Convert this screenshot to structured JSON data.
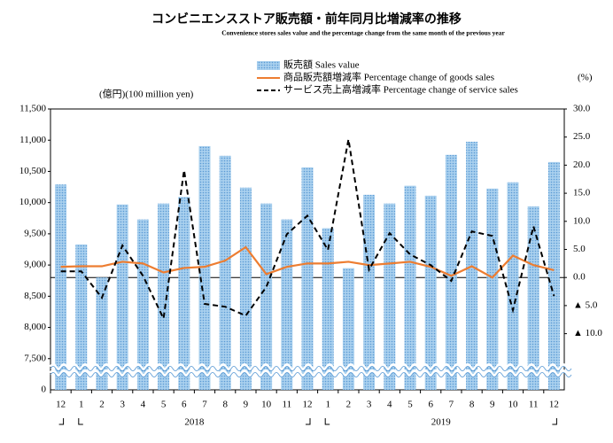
{
  "chart_data": {
    "type": "bar_line",
    "title": "コンビニエンスストア販売額・前年同月比増減率の推移",
    "subtitle": "Convenience stores sales value and the percentage change from the same month of the previous year",
    "y_label": "(億円)(100 million yen)",
    "y2_label": "(%)",
    "categories": [
      "12",
      "1",
      "2",
      "3",
      "4",
      "5",
      "6",
      "7",
      "8",
      "9",
      "10",
      "11",
      "12",
      "1",
      "2",
      "3",
      "4",
      "5",
      "6",
      "7",
      "8",
      "9",
      "10",
      "11",
      "12"
    ],
    "year_labels": [
      "2018",
      "2019"
    ],
    "ylim": [
      7000,
      11500
    ],
    "yticks": [
      {
        "value": 7500,
        "label": "7,500"
      },
      {
        "value": 8000,
        "label": "8,000"
      },
      {
        "value": 8500,
        "label": "8,500"
      },
      {
        "value": 9000,
        "label": "9,000"
      },
      {
        "value": 9500,
        "label": "9,500"
      },
      {
        "value": 10000,
        "label": "10,000"
      },
      {
        "value": 10500,
        "label": "10,500"
      },
      {
        "value": 11000,
        "label": "11,000"
      },
      {
        "value": 11500,
        "label": "11,500"
      }
    ],
    "y_break_label": "0",
    "y2lim": [
      -20,
      30
    ],
    "y2ticks": [
      {
        "value": -10,
        "label": "▲ 10.0"
      },
      {
        "value": -5,
        "label": "▲ 5.0"
      },
      {
        "value": 0,
        "label": "0.0"
      },
      {
        "value": 5,
        "label": "5.0"
      },
      {
        "value": 10,
        "label": "10.0"
      },
      {
        "value": 15,
        "label": "15.0"
      },
      {
        "value": 20,
        "label": "20.0"
      },
      {
        "value": 25,
        "label": "25.0"
      },
      {
        "value": 30,
        "label": "30.0"
      }
    ],
    "series": [
      {
        "name": "販売額 Sales value",
        "kind": "bar",
        "color": "#9cc8ea",
        "values": [
          10290,
          9330,
          8800,
          9970,
          9730,
          9985,
          10090,
          10905,
          10750,
          10240,
          9985,
          9730,
          10565,
          9590,
          8950,
          10125,
          9985,
          10270,
          10110,
          10765,
          10975,
          10225,
          10325,
          9940,
          10650
        ]
      },
      {
        "name": "商品販売額増減率 Percentage change of goods sales",
        "kind": "line",
        "axis": "y2",
        "color": "#ed7d31",
        "values": [
          1.9,
          2.0,
          2.0,
          2.8,
          2.5,
          0.9,
          1.7,
          1.9,
          3.0,
          5.4,
          0.6,
          1.9,
          2.5,
          2.5,
          2.8,
          2.2,
          2.5,
          2.8,
          1.9,
          0.3,
          2.0,
          0.0,
          3.9,
          2.2,
          1.3
        ]
      },
      {
        "name": "サービス売上高増減率 Percentage change of service sales",
        "kind": "dashed",
        "axis": "y2",
        "color": "#000000",
        "values": [
          1.1,
          1.1,
          -3.6,
          5.7,
          0.3,
          -7.3,
          19.1,
          -4.7,
          -5.2,
          -6.8,
          -1.7,
          7.7,
          11.0,
          4.9,
          24.6,
          1.4,
          7.9,
          4.1,
          2.2,
          -0.6,
          8.2,
          7.4,
          -5.8,
          9.1,
          -3.3
        ]
      }
    ]
  }
}
